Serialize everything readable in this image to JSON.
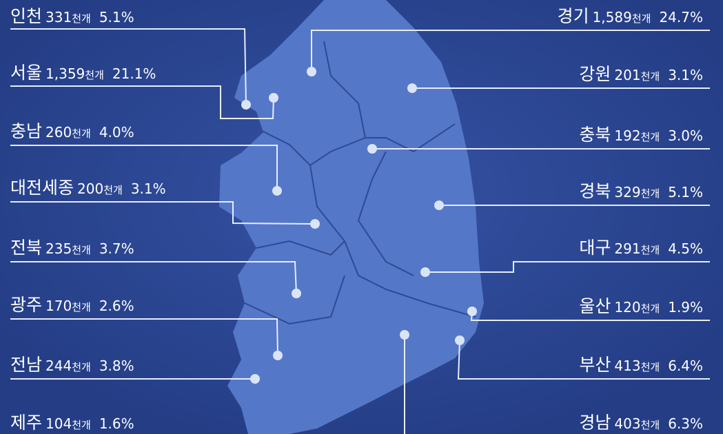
{
  "unit": "천개",
  "left": [
    {
      "name": "인천",
      "count": "331",
      "share": "5.1%"
    },
    {
      "name": "서울",
      "count": "1,359",
      "share": "21.1%"
    },
    {
      "name": "충남",
      "count": "260",
      "share": "4.0%"
    },
    {
      "name": "대전세종",
      "count": "200",
      "share": "3.1%"
    },
    {
      "name": "전북",
      "count": "235",
      "share": "3.7%"
    },
    {
      "name": "광주",
      "count": "170",
      "share": "2.6%"
    },
    {
      "name": "전남",
      "count": "244",
      "share": "3.8%"
    },
    {
      "name": "제주",
      "count": "104",
      "share": "1.6%"
    }
  ],
  "right": [
    {
      "name": "경기",
      "count": "1,589",
      "share": "24.7%"
    },
    {
      "name": "강원",
      "count": "201",
      "share": "3.1%"
    },
    {
      "name": "충북",
      "count": "192",
      "share": "3.0%"
    },
    {
      "name": "경북",
      "count": "329",
      "share": "5.1%"
    },
    {
      "name": "대구",
      "count": "291",
      "share": "4.5%"
    },
    {
      "name": "울산",
      "count": "120",
      "share": "1.9%"
    },
    {
      "name": "부산",
      "count": "413",
      "share": "6.4%"
    },
    {
      "name": "경남",
      "count": "403",
      "share": "6.3%"
    }
  ]
}
